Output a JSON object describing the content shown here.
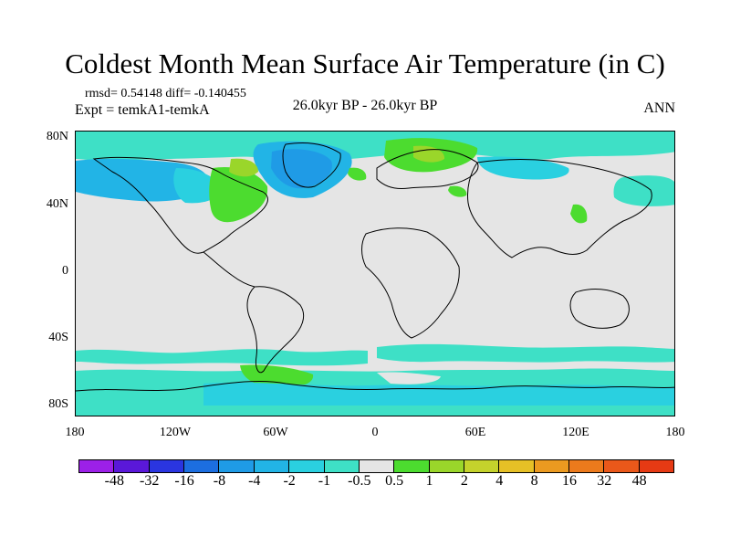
{
  "title": "Coldest Month Mean Surface Air Temperature (in C)",
  "stats_line": "rmsd= 0.54148 diff= -0.140455",
  "experiment_line": "Expt = temkA1-temkA",
  "period_label": "26.0kyr BP - 26.0kyr BP",
  "season_label": "ANN",
  "y_axis_ticks": [
    "80N",
    "40N",
    "0",
    "40S",
    "80S"
  ],
  "x_axis_ticks": [
    "180",
    "120W",
    "60W",
    "0",
    "60E",
    "120E",
    "180"
  ],
  "colorbar": {
    "colors": [
      "#9c20e8",
      "#5a18d9",
      "#2a35e0",
      "#1c6ee0",
      "#1f9be6",
      "#22b4e6",
      "#2ad0e0",
      "#3ee0c6",
      "#e5e5e5",
      "#4cdc2f",
      "#9ad62a",
      "#c4d22c",
      "#e6c026",
      "#eb9a20",
      "#ec7a1c",
      "#ea581a",
      "#e63a14"
    ],
    "labels": [
      "-48",
      "-32",
      "-16",
      "-8",
      "-4",
      "-2",
      "-1",
      "-0.5",
      "0.5",
      "1",
      "2",
      "4",
      "8",
      "16",
      "32",
      "48"
    ]
  },
  "map_colors": {
    "neutral": "#e5e5e5",
    "cyan_light": "#3ee0c6",
    "cyan": "#2ad0e0",
    "blue_light": "#22b4e6",
    "blue": "#1f9be6",
    "green": "#4cdc2f",
    "yellow_green": "#9ad62a",
    "coast": "#000000"
  }
}
